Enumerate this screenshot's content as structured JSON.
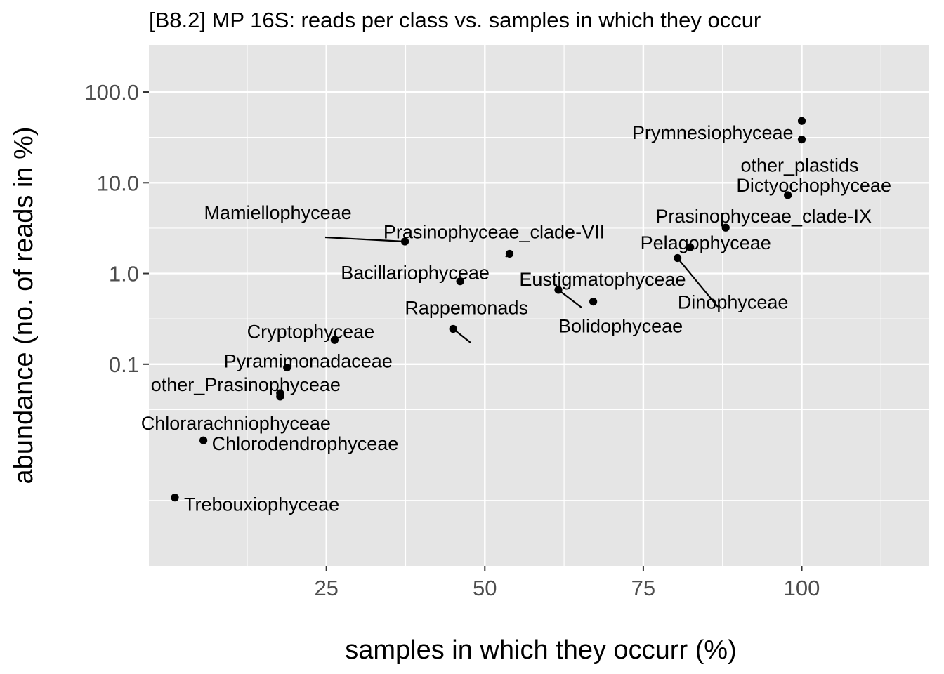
{
  "chart_data": {
    "type": "scatter",
    "title": "[B8.2] MP 16S: reads per class vs. samples in which they occur",
    "xlabel": "samples in which they occurr (%)",
    "ylabel": "abundance (no. of reads in %)",
    "x_scale": "linear",
    "y_scale": "log10",
    "xlim": [
      -3,
      120
    ],
    "ylim": [
      0.0006,
      330
    ],
    "x_ticks": [
      25,
      50,
      75,
      100
    ],
    "x_tick_labels": [
      "25",
      "50",
      "75",
      "100"
    ],
    "y_ticks": [
      0.1,
      1.0,
      10.0,
      100.0
    ],
    "y_tick_labels": [
      "0.1",
      "1.0",
      "10.0",
      "100.0"
    ],
    "grid": true,
    "legend": "none",
    "colors": {
      "panel": "#e5e5e5",
      "grid": "#ffffff",
      "point": "#000000"
    },
    "points": [
      {
        "name": "Prymnesiophyceae",
        "x": 100,
        "y": 48
      },
      {
        "name": "other_plastids",
        "x": 100,
        "y": 30
      },
      {
        "name": "Dictyochophyceae",
        "x": 97.8,
        "y": 7.3
      },
      {
        "name": "Prasinophyceae_clade-IX",
        "x": 88,
        "y": 3.2
      },
      {
        "name": "Pelagophyceae",
        "x": 82.4,
        "y": 1.95
      },
      {
        "name": "Dinophyceae",
        "x": 80.4,
        "y": 1.48
      },
      {
        "name": "Mamiellophyceae",
        "x": 37.4,
        "y": 2.25
      },
      {
        "name": "Prasinophyceae_clade-VII",
        "x": 53.9,
        "y": 1.65
      },
      {
        "name": "Bacillariophyceae",
        "x": 46.1,
        "y": 0.82
      },
      {
        "name": "Eustigmatophyceae",
        "x": 61.6,
        "y": 0.66
      },
      {
        "name": "Bolidophyceae",
        "x": 67.1,
        "y": 0.49
      },
      {
        "name": "Rappemonads",
        "x": 45,
        "y": 0.245
      },
      {
        "name": "Cryptophyceae",
        "x": 26.3,
        "y": 0.185
      },
      {
        "name": "Pyramimonadaceae",
        "x": 18.8,
        "y": 0.092
      },
      {
        "name": "other_Prasinophyceae",
        "x": 17.7,
        "y": 0.048
      },
      {
        "name": "Chlorarachniophyceae",
        "x": 17.7,
        "y": 0.044
      },
      {
        "name": "Chlorodendrophyceae",
        "x": 5.6,
        "y": 0.0145
      },
      {
        "name": "Trebouxiophyceae",
        "x": 1.1,
        "y": 0.0034
      }
    ]
  }
}
